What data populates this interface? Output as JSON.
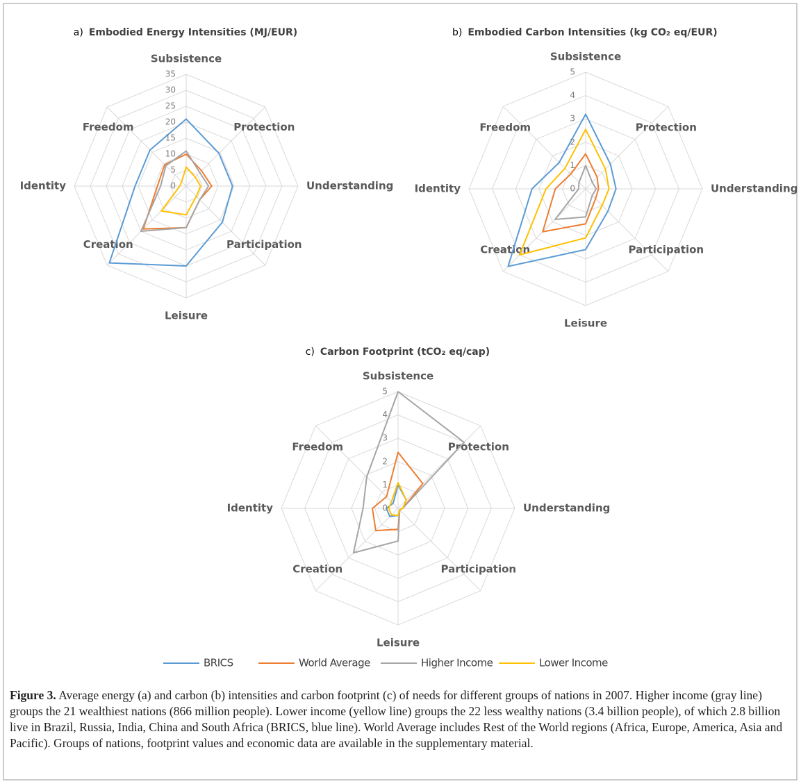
{
  "chart_data": [
    {
      "type": "radar",
      "panel": "a)",
      "title": "Embodied Energy Intensities (MJ/EUR)",
      "categories": [
        "Subsistence",
        "Protection",
        "Understanding",
        "Participation",
        "Leisure",
        "Creation",
        "Identity",
        "Freedom"
      ],
      "ylim": [
        0,
        35
      ],
      "yticks": [
        0,
        5,
        10,
        15,
        20,
        25,
        30,
        35
      ],
      "grid": true,
      "series": [
        {
          "name": "BRICS",
          "color": "#5b9bd5",
          "values": [
            21,
            14.5,
            14.5,
            16,
            25,
            34,
            16,
            16
          ]
        },
        {
          "name": "World Average",
          "color": "#ed7d31",
          "values": [
            10,
            6.8,
            8,
            6,
            13,
            19,
            9,
            9.5
          ]
        },
        {
          "name": "Higher Income",
          "color": "#a5a5a5",
          "values": [
            11,
            6,
            7,
            6,
            13,
            20,
            8,
            9
          ]
        },
        {
          "name": "Lower Income",
          "color": "#ffc000",
          "values": [
            6,
            4,
            4.5,
            4.5,
            9,
            11,
            2,
            2
          ]
        }
      ]
    },
    {
      "type": "radar",
      "panel": "b)",
      "title": "Embodied Carbon Intensities (kg CO₂ eq/EUR)",
      "categories": [
        "Subsistence",
        "Protection",
        "Understanding",
        "Participation",
        "Leisure",
        "Creation",
        "Identity",
        "Freedom"
      ],
      "ylim": [
        0,
        5
      ],
      "yticks": [
        0,
        1,
        2,
        3,
        4,
        5
      ],
      "grid": true,
      "series": [
        {
          "color": "#5b9bd5",
          "values": [
            3.2,
            1.5,
            1.3,
            1.35,
            2.6,
            4.7,
            2.3,
            1.6
          ]
        },
        {
          "color": "#ed7d31",
          "values": [
            1.5,
            0.7,
            0.55,
            0.6,
            1.5,
            2.6,
            1.3,
            0.9
          ]
        },
        {
          "color": "#a5a5a5",
          "values": [
            1.0,
            0.4,
            0.45,
            0.4,
            1.2,
            1.85,
            0.3,
            0.4
          ]
        },
        {
          "color": "#ffc000",
          "values": [
            2.55,
            1.2,
            1.0,
            1.0,
            2.1,
            4.0,
            1.7,
            1.25
          ]
        }
      ]
    },
    {
      "type": "radar",
      "panel": "c)",
      "title": "Carbon Footprint (tCO₂ eq/cap)",
      "categories": [
        "Subsistence",
        "Protection",
        "Understanding",
        "Participation",
        "Leisure",
        "Creation",
        "Identity",
        "Freedom"
      ],
      "ylim": [
        0,
        5
      ],
      "yticks": [
        0,
        1,
        2,
        3,
        4,
        5
      ],
      "grid": true,
      "series": [
        {
          "color": "#5b9bd5",
          "values": [
            1.0,
            0.5,
            0.2,
            0.1,
            0.3,
            0.5,
            0.5,
            0.3
          ]
        },
        {
          "color": "#ed7d31",
          "values": [
            2.4,
            1.5,
            0.2,
            0.1,
            0.9,
            1.35,
            1.1,
            0.7
          ]
        },
        {
          "color": "#a5a5a5",
          "values": [
            5,
            4,
            0.2,
            0.1,
            1.4,
            2.7,
            1.5,
            1.9
          ]
        },
        {
          "color": "#ffc000",
          "values": [
            1.1,
            0.5,
            0.2,
            0.1,
            0.3,
            0.4,
            0.4,
            0.4
          ]
        }
      ]
    }
  ],
  "caption": {
    "label": "Figure 3.",
    "text": "Average energy (a) and carbon (b) intensities and carbon footprint (c) of needs for different groups of nations in 2007. Higher income (gray line) groups the 21 wealthiest nations (866 million people). Lower income (yellow line) groups the 22 less wealthy nations (3.4 billion people), of which 2.8 billion live in Brazil, Russia, India, China and South Africa (BRICS, blue line). World Average includes Rest of the World regions (Africa, Europe, America, Asia and Pacific). Groups of nations, footprint values and economic data are available in the supplementary material."
  }
}
